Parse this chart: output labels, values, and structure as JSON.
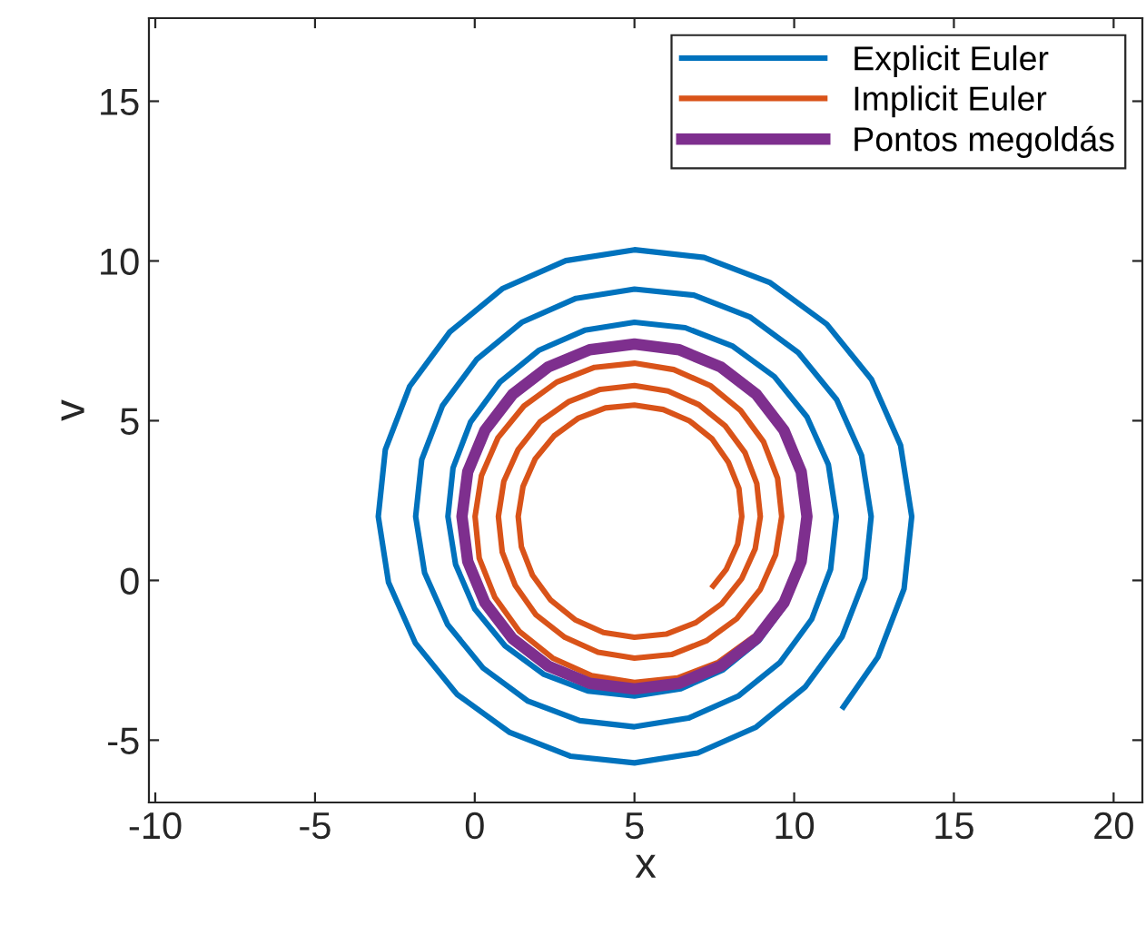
{
  "chart_data": {
    "type": "line",
    "xlabel": "x",
    "ylabel": "v",
    "xlim": [
      -10.2,
      20.9
    ],
    "ylim": [
      -6.95,
      17.6
    ],
    "xticks": [
      -10,
      -5,
      0,
      5,
      10,
      15,
      20
    ],
    "yticks": [
      -5,
      0,
      5,
      10,
      15
    ],
    "grid": false,
    "legend": "top right",
    "marker": "none",
    "line_style": "solid",
    "series": [
      {
        "name": "Explicit Euler",
        "color": "#0072bd",
        "x": [
          9.74,
          8.89,
          7.77,
          6.45,
          5.0,
          3.54,
          2.15,
          0.95,
          0.0,
          -0.6,
          -0.84,
          -0.68,
          -0.13,
          0.79,
          2.0,
          3.44,
          5.0,
          6.59,
          8.08,
          9.38,
          10.4,
          11.07,
          11.32,
          11.14,
          10.55,
          9.56,
          8.25,
          6.69,
          5.0,
          3.29,
          1.67,
          0.26,
          -0.85,
          -1.57,
          -1.85,
          -1.66,
          -1.01,
          0.07,
          1.49,
          3.17,
          5.0,
          6.86,
          8.61,
          10.13,
          11.33,
          12.11,
          12.41,
          12.21,
          11.5,
          10.34,
          8.81,
          6.98,
          5.0,
          2.99,
          1.1,
          -0.56,
          -1.86,
          -2.7,
          -3.02,
          -2.8,
          -2.04,
          -0.78,
          0.88,
          2.85,
          5.0,
          7.18,
          9.23,
          11.02,
          12.42,
          13.33,
          13.68,
          13.44,
          12.62,
          11.49
        ],
        "values": [
          -0.74,
          -1.89,
          -2.8,
          -3.39,
          -3.62,
          -3.46,
          -2.93,
          -2.05,
          -0.89,
          0.5,
          2.0,
          3.52,
          4.96,
          6.21,
          7.2,
          7.83,
          8.08,
          7.91,
          7.33,
          6.38,
          5.12,
          3.63,
          2.0,
          0.35,
          -1.21,
          -2.56,
          -3.62,
          -4.31,
          -4.58,
          -4.39,
          -3.78,
          -2.74,
          -1.38,
          0.24,
          2.0,
          3.78,
          5.47,
          6.93,
          8.09,
          8.83,
          9.12,
          8.93,
          8.25,
          7.13,
          5.66,
          3.91,
          2.0,
          0.07,
          -1.76,
          -3.34,
          -4.59,
          -5.4,
          -5.71,
          -5.5,
          -4.76,
          -3.56,
          -1.96,
          -0.06,
          2.0,
          4.09,
          6.07,
          7.78,
          9.14,
          10.01,
          10.35,
          10.11,
          9.33,
          8.02,
          6.29,
          4.23,
          2.0,
          -0.26,
          -2.4,
          -4.03
        ]
      },
      {
        "name": "Implicit Euler",
        "color": "#d95319",
        "x": [
          8.75,
          7.63,
          6.35,
          5.0,
          3.66,
          2.44,
          1.4,
          0.63,
          0.14,
          0.01,
          0.21,
          0.73,
          1.54,
          2.57,
          3.75,
          5.0,
          6.23,
          7.37,
          8.32,
          9.04,
          9.48,
          9.61,
          9.42,
          8.94,
          8.2,
          7.25,
          6.16,
          5.0,
          3.86,
          2.82,
          1.92,
          1.27,
          0.86,
          0.74,
          0.91,
          1.36,
          2.04,
          2.93,
          3.93,
          5.0,
          6.05,
          7.02,
          7.84,
          8.46,
          8.83,
          8.94,
          8.78,
          8.36,
          7.73,
          6.92,
          5.99,
          5.0,
          4.03,
          3.14,
          2.38,
          1.81,
          1.46,
          1.36,
          1.51,
          1.89,
          2.48,
          3.23,
          4.09,
          5.0,
          5.9,
          6.73,
          7.43,
          7.94,
          8.27,
          8.36,
          8.23,
          7.87,
          7.41
        ],
        "values": [
          -1.75,
          -2.56,
          -3.05,
          -3.19,
          -2.98,
          -2.43,
          -1.6,
          -0.53,
          0.7,
          2.0,
          3.28,
          4.47,
          5.46,
          6.21,
          6.67,
          6.8,
          6.6,
          6.1,
          5.32,
          4.34,
          3.2,
          2.0,
          0.81,
          -0.28,
          -1.2,
          -1.89,
          -2.32,
          -2.43,
          -2.25,
          -1.78,
          -1.08,
          -0.16,
          0.89,
          2.0,
          3.1,
          4.1,
          4.96,
          5.59,
          5.98,
          6.1,
          5.93,
          5.5,
          4.84,
          4.0,
          3.03,
          2.0,
          0.99,
          0.06,
          -0.73,
          -1.32,
          -1.68,
          -1.78,
          -1.63,
          -1.23,
          -0.62,
          0.16,
          1.05,
          2.0,
          2.94,
          3.8,
          4.52,
          5.07,
          5.4,
          5.49,
          5.35,
          4.99,
          4.43,
          3.7,
          2.88,
          2.0,
          1.14,
          0.34,
          -0.24
        ]
      },
      {
        "name": "Pontos megoldás",
        "color": "#7e2f8e",
        "x": [
          10.4,
          10.22,
          9.68,
          8.82,
          7.7,
          6.4,
          5.0,
          3.6,
          2.3,
          1.18,
          0.32,
          -0.22,
          -0.4,
          -0.22,
          0.32,
          1.18,
          2.3,
          3.6,
          5.0,
          6.4,
          7.7,
          8.82,
          9.68,
          10.22,
          10.4,
          10.22
        ],
        "values": [
          2.0,
          0.6,
          -0.7,
          -1.82,
          -2.68,
          -3.22,
          -3.4,
          -3.22,
          -2.68,
          -1.82,
          -0.7,
          0.6,
          2.0,
          3.4,
          4.7,
          5.82,
          6.68,
          7.22,
          7.4,
          7.22,
          6.68,
          5.82,
          4.7,
          3.4,
          2.0,
          0.6
        ]
      }
    ]
  }
}
